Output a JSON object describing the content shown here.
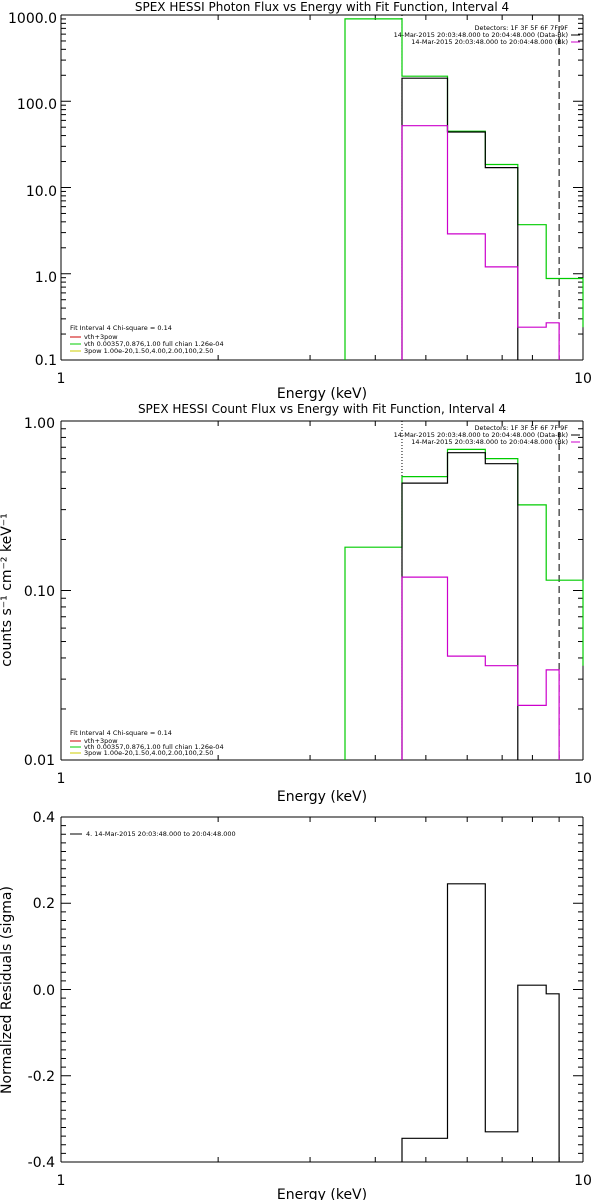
{
  "chart_data": [
    {
      "type": "line",
      "title": "SPEX HESSI Photon Flux vs Energy with Fit Function, Interval 4",
      "xlabel": "Energy (keV)",
      "ylabel": "",
      "xscale": "log",
      "yscale": "log",
      "xlim": [
        1,
        10
      ],
      "ylim": [
        0.1,
        1000
      ],
      "x_ticks": [
        "1",
        "10"
      ],
      "y_ticks": [
        "0.1",
        "1.0",
        "10.0",
        "100.0",
        "1000.0"
      ],
      "legend_top_right": [
        {
          "text": "Detectors: 1F 3F 5F 6F 7F 9F",
          "color": "#000000"
        },
        {
          "text": "14-Mar-2015 20:03:48.000 to 20:04:48.000 (Data-Bk)",
          "color": "#000000"
        },
        {
          "text": "14-Mar-2015 20:03:48.000 to 20:04:48.000 (Bk)",
          "color": "#cc00cc"
        }
      ],
      "legend_bottom_left": [
        {
          "text": "Fit Interval  4    Chi-square = 0.14",
          "color": "#000000"
        },
        {
          "text": "vth+3pow",
          "color": "#cc0000"
        },
        {
          "text": "vth 0.00357,0.876,1.00   full chian 1.26e-04",
          "color": "#00cc00"
        },
        {
          "text": "3pow 1.00e-20,1.50,4.00,2.00,100,2.50",
          "color": "#cccc00"
        }
      ],
      "vlines": [
        {
          "x": 4.5,
          "style": "dotted"
        },
        {
          "x": 9.0,
          "style": "dashed"
        }
      ],
      "series": [
        {
          "color": "#00cc00",
          "edges": [
            3.5,
            4.5,
            5.5,
            6.5,
            7.5,
            8.5,
            10
          ],
          "values": [
            900,
            195,
            45,
            18.5,
            3.7,
            0.88,
            0.24
          ]
        },
        {
          "color": "#000000",
          "edges": [
            4.5,
            5.5,
            6.5,
            7.5
          ],
          "values": [
            185,
            44,
            17
          ]
        },
        {
          "color": "#cc00cc",
          "edges": [
            4.5,
            5.5,
            6.5,
            7.5,
            8.5,
            9.0
          ],
          "values": [
            52,
            2.9,
            1.2,
            0.24,
            0.27
          ]
        }
      ]
    },
    {
      "type": "line",
      "title": "SPEX HESSI Count Flux vs Energy with Fit Function, Interval 4",
      "xlabel": "Energy (keV)",
      "ylabel": "counts s⁻¹ cm⁻² keV⁻¹",
      "xscale": "log",
      "yscale": "log",
      "xlim": [
        1,
        10
      ],
      "ylim": [
        0.01,
        1
      ],
      "x_ticks": [
        "1",
        "10"
      ],
      "y_ticks": [
        "0.01",
        "0.10",
        "1.00"
      ],
      "legend_top_right": [
        {
          "text": "Detectors: 1F 3F 5F 6F 7F 9F",
          "color": "#000000"
        },
        {
          "text": "14-Mar-2015 20:03:48.000 to 20:04:48.000 (Data-Bk)",
          "color": "#000000"
        },
        {
          "text": "14-Mar-2015 20:03:48.000 to 20:04:48.000 (Bk)",
          "color": "#cc00cc"
        }
      ],
      "legend_bottom_left": [
        {
          "text": "Fit Interval  4    Chi-square = 0.14",
          "color": "#000000"
        },
        {
          "text": "vth+3pow",
          "color": "#cc0000"
        },
        {
          "text": "vth 0.00357,0.876,1.00   full chian 1.26e-04",
          "color": "#00cc00"
        },
        {
          "text": "3pow 1.00e-20,1.50,4.00,2.00,100,2.50",
          "color": "#cccc00"
        }
      ],
      "vlines": [
        {
          "x": 4.5,
          "style": "dotted"
        },
        {
          "x": 9.0,
          "style": "dashed"
        }
      ],
      "series": [
        {
          "color": "#00cc00",
          "edges": [
            3.5,
            4.5,
            5.5,
            6.5,
            7.5,
            8.5,
            10
          ],
          "values": [
            0.18,
            0.47,
            0.68,
            0.6,
            0.32,
            0.115,
            0.036
          ]
        },
        {
          "color": "#000000",
          "edges": [
            4.5,
            5.5,
            6.5,
            7.5
          ],
          "values": [
            0.43,
            0.65,
            0.56
          ]
        },
        {
          "color": "#cc00cc",
          "edges": [
            4.5,
            5.5,
            6.5,
            7.5,
            8.5,
            9.0
          ],
          "values": [
            0.12,
            0.041,
            0.036,
            0.021,
            0.034
          ]
        }
      ]
    },
    {
      "type": "line",
      "title": "",
      "xlabel": "Energy (keV)",
      "ylabel": "Normalized Residuals (sigma)",
      "xscale": "log",
      "yscale": "linear",
      "xlim": [
        1,
        10
      ],
      "ylim": [
        -0.4,
        0.4
      ],
      "x_ticks": [
        "1",
        "10"
      ],
      "y_ticks": [
        "-0.4",
        "-0.2",
        "0.0",
        "0.2",
        "0.4"
      ],
      "legend_top_left": [
        {
          "text": "4. 14-Mar-2015 20:03:48.000 to 20:04:48.000",
          "color": "#000000"
        }
      ],
      "series": [
        {
          "color": "#000000",
          "edges": [
            4.5,
            5.5,
            6.5,
            7.5,
            8.5,
            9.0
          ],
          "values": [
            -0.345,
            0.245,
            -0.33,
            0.01,
            -0.01
          ]
        }
      ]
    }
  ]
}
